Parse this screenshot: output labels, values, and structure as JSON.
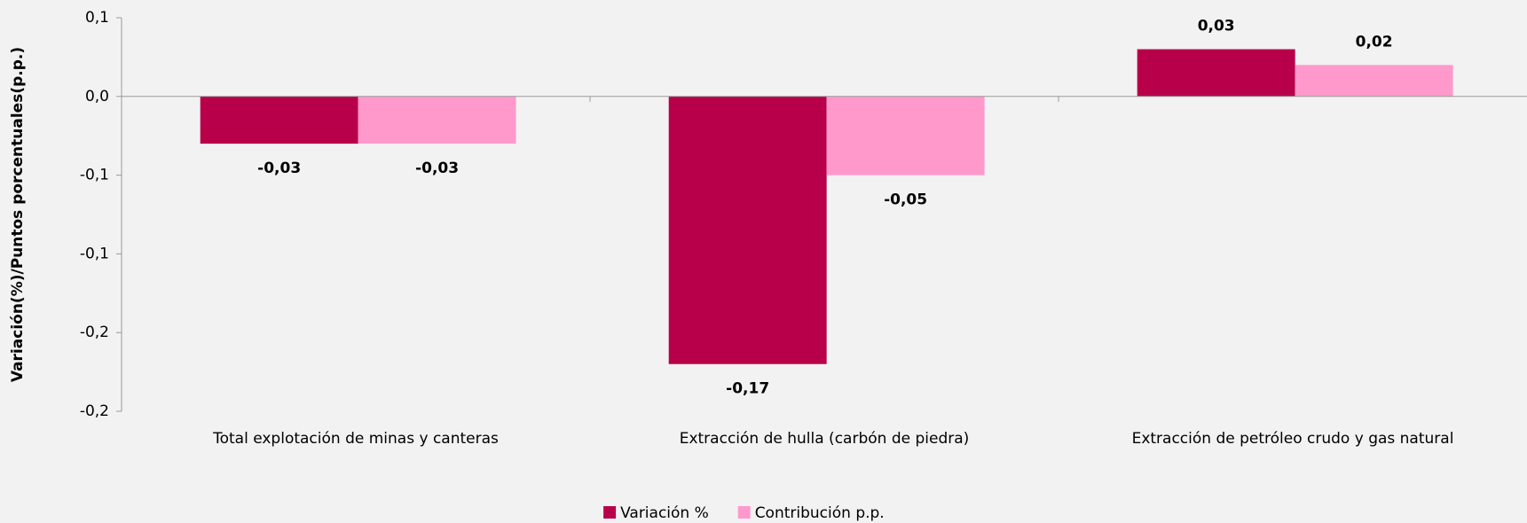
{
  "chart_data": {
    "type": "bar",
    "y_label": "Variación(%)/Puntos porcentuales(p.p.)",
    "categories": [
      "Total explotación de minas y canteras",
      "Extracción de hulla (carbón de piedra)",
      "Extracción de petróleo crudo y gas natural"
    ],
    "series": [
      {
        "name": "Variación %",
        "color": "#b8004a",
        "values": [
          -0.03,
          -0.17,
          0.03
        ],
        "value_labels": [
          "-0,03",
          "-0,17",
          "0,03"
        ]
      },
      {
        "name": "Contribución p.p.",
        "color": "#ff99cc",
        "values": [
          -0.03,
          -0.05,
          0.02
        ],
        "value_labels": [
          "-0,03",
          "-0,05",
          "0,02"
        ]
      }
    ],
    "ylim": [
      -0.2,
      0.05
    ],
    "yticks": [
      {
        "value": 0.05,
        "label": "0,1"
      },
      {
        "value": 0,
        "label": "0,0"
      },
      {
        "value": -0.05,
        "label": "-0,1"
      },
      {
        "value": -0.1,
        "label": "-0,1"
      },
      {
        "value": -0.15,
        "label": "-0,2"
      },
      {
        "value": -0.2,
        "label": "-0,2"
      }
    ],
    "legend": "bottom"
  }
}
